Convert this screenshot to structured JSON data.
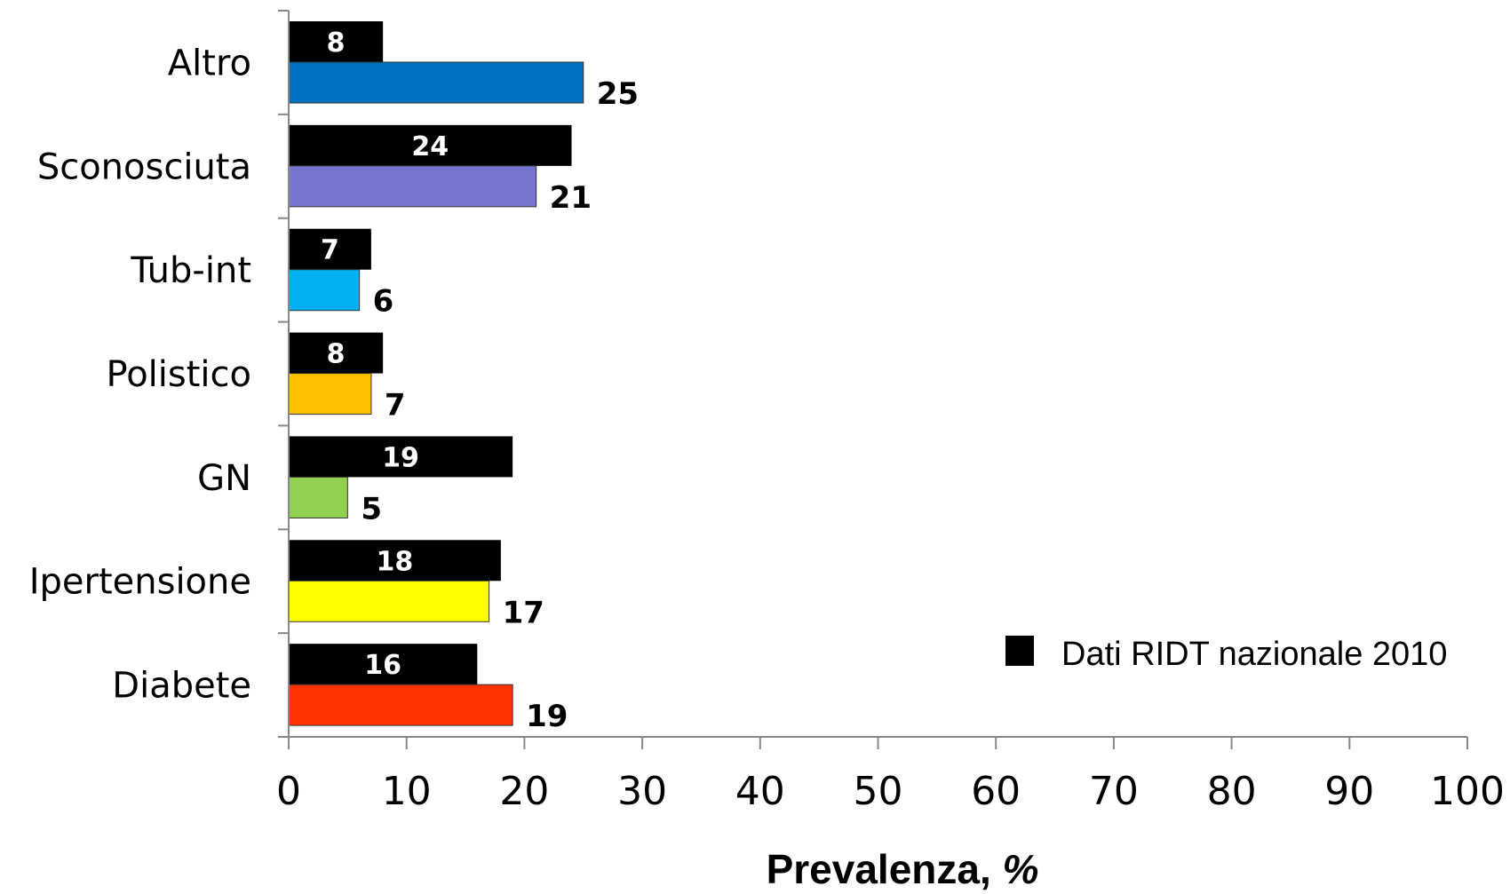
{
  "chart_data": {
    "type": "bar",
    "orientation": "horizontal",
    "categories": [
      "Altro",
      "Sconosciuta",
      "Tub-int",
      "Polistico",
      "GN",
      "Ipertensione",
      "Diabete"
    ],
    "series": [
      {
        "name": "Dati RIDT nazionale 2010",
        "color": "#000000",
        "values": [
          8,
          24,
          7,
          8,
          19,
          18,
          16
        ]
      },
      {
        "name": "",
        "colors": [
          "#0070C0",
          "#7676D0",
          "#00B0F0",
          "#FFC000",
          "#92D050",
          "#FFFF00",
          "#FF3300"
        ],
        "values": [
          25,
          21,
          6,
          7,
          5,
          17,
          19
        ]
      }
    ],
    "xlim": [
      0,
      100
    ],
    "xticks": [
      0,
      10,
      20,
      30,
      40,
      50,
      60,
      70,
      80,
      90,
      100
    ],
    "xlabel": "Prevalenza, %",
    "ylabel": "",
    "title": "",
    "legend": {
      "placement": "bottom-right",
      "entries": [
        "Dati RIDT nazionale 2010"
      ]
    },
    "grid": false
  }
}
